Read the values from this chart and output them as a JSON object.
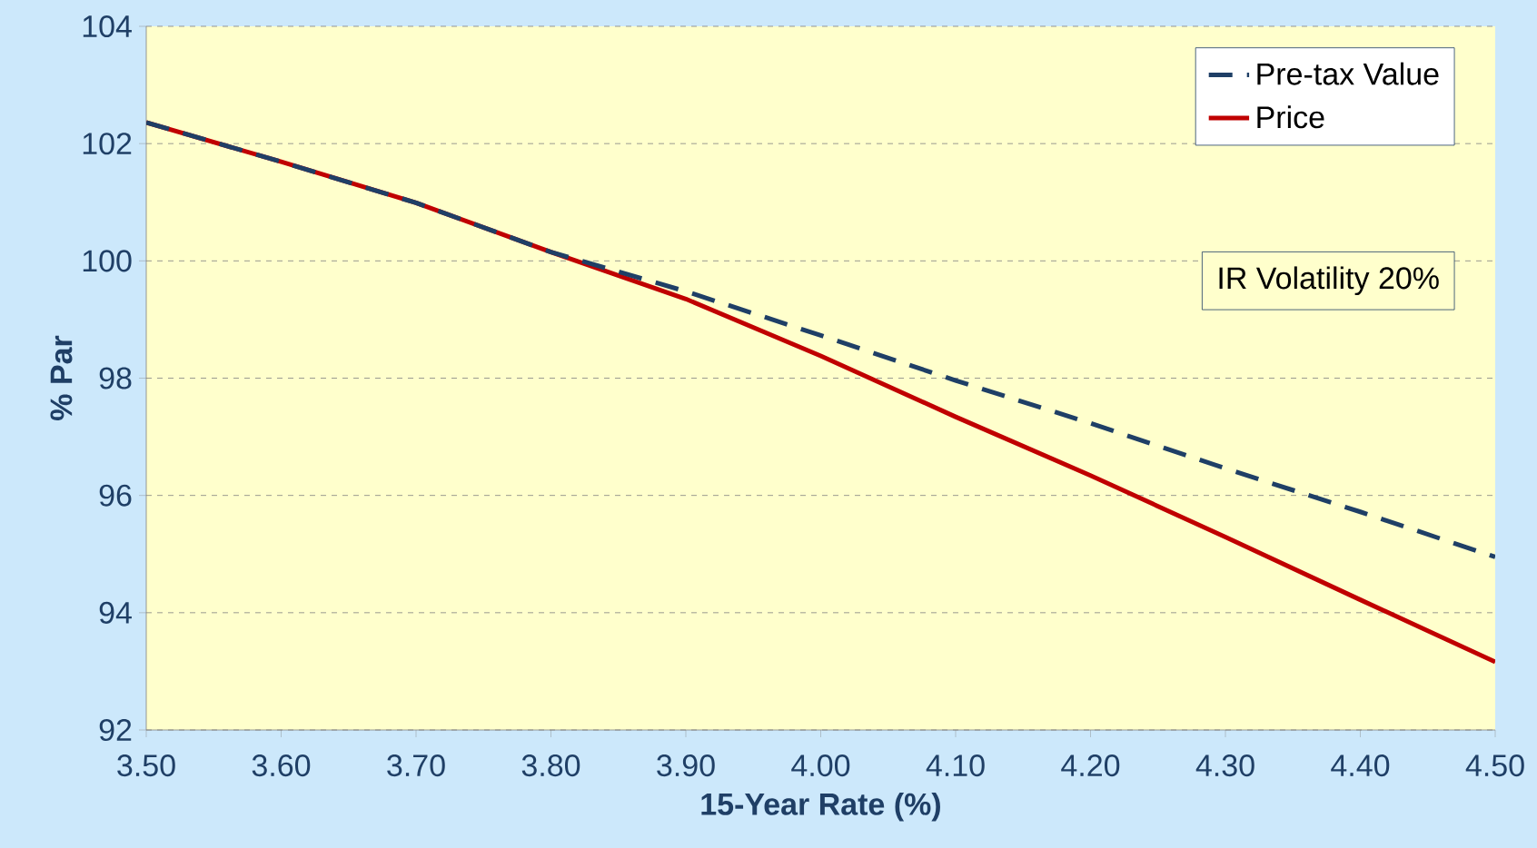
{
  "chart_data": {
    "type": "line",
    "xlabel": "15-Year Rate (%)",
    "ylabel": "% Par",
    "x": [
      3.5,
      3.6,
      3.7,
      3.8,
      3.9,
      4.0,
      4.1,
      4.2,
      4.3,
      4.4,
      4.5
    ],
    "series": [
      {
        "name": "Pre-tax Value",
        "color": "#1f3f66",
        "line_style": "dashed",
        "values": [
          102.36,
          101.69,
          100.99,
          100.15,
          99.48,
          98.73,
          97.96,
          97.23,
          96.46,
          95.72,
          94.95
        ]
      },
      {
        "name": "Price",
        "color": "#c00000",
        "line_style": "solid",
        "values": [
          102.36,
          101.69,
          100.99,
          100.15,
          99.35,
          98.38,
          97.34,
          96.34,
          95.29,
          94.22,
          93.16
        ]
      }
    ],
    "xlim": [
      3.5,
      4.5
    ],
    "ylim": [
      92,
      104
    ],
    "xticks": [
      {
        "value": 3.5,
        "label": "3.50"
      },
      {
        "value": 3.6,
        "label": "3.60"
      },
      {
        "value": 3.7,
        "label": "3.70"
      },
      {
        "value": 3.8,
        "label": "3.80"
      },
      {
        "value": 3.9,
        "label": "3.90"
      },
      {
        "value": 4.0,
        "label": "4.00"
      },
      {
        "value": 4.1,
        "label": "4.10"
      },
      {
        "value": 4.2,
        "label": "4.20"
      },
      {
        "value": 4.3,
        "label": "4.30"
      },
      {
        "value": 4.4,
        "label": "4.40"
      },
      {
        "value": 4.5,
        "label": "4.50"
      }
    ],
    "yticks": [
      92,
      94,
      96,
      98,
      100,
      102,
      104
    ],
    "grid": "y",
    "legend": "top right",
    "marker": "none",
    "annotations": [
      "IR Volatility 20%"
    ]
  }
}
